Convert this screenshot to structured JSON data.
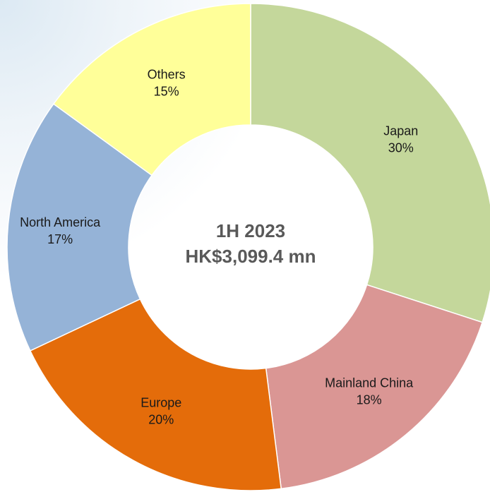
{
  "chart_data": {
    "type": "pie",
    "subtype": "donut",
    "center_title": "1H 2023",
    "center_subtitle": "HK$3,099.4 mn",
    "slices": [
      {
        "name": "Japan",
        "value": 30,
        "label": "30%",
        "color": "#c4d79b"
      },
      {
        "name": "Mainland China",
        "value": 18,
        "label": "18%",
        "color": "#da9694"
      },
      {
        "name": "Europe",
        "value": 20,
        "label": "20%",
        "color": "#e46c0a"
      },
      {
        "name": "North America",
        "value": 17,
        "label": "17%",
        "color": "#95b3d7"
      },
      {
        "name": "Others",
        "value": 15,
        "label": "15%",
        "color": "#ffff99"
      }
    ],
    "start": "12 o'clock",
    "direction": "clockwise",
    "legend": "none"
  }
}
